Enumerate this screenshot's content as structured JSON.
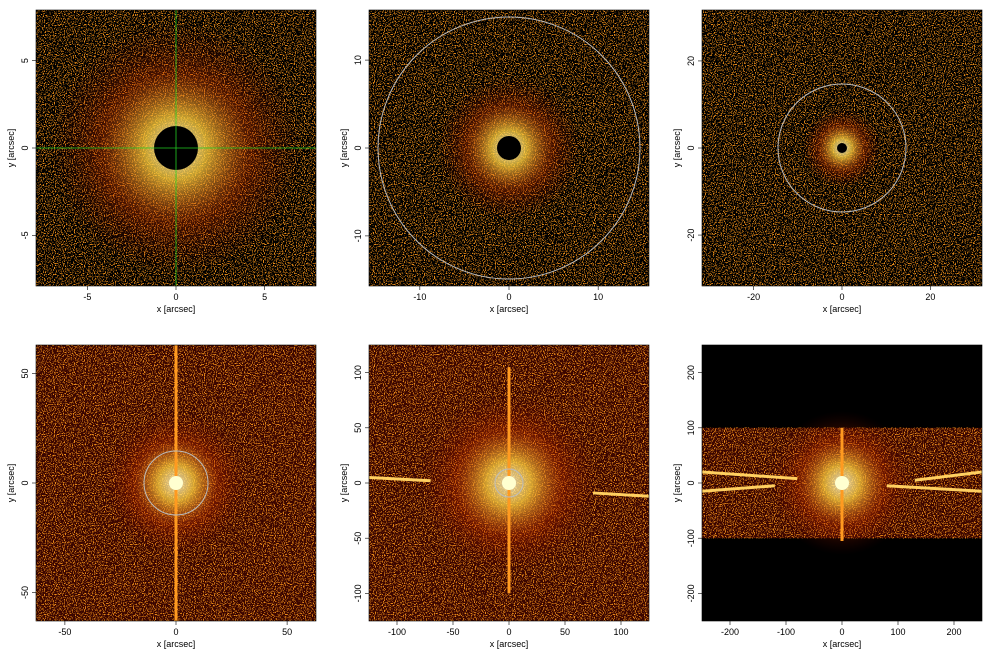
{
  "chart_data": [
    {
      "type": "image",
      "xlabel": "x [arcsec]",
      "ylabel": "y [arcsec]",
      "xlim": [
        -7.9,
        7.9
      ],
      "ylim": [
        -7.9,
        7.9
      ],
      "xticks": [
        -5,
        0,
        5
      ],
      "yticks": [
        -5,
        0,
        5
      ]
    },
    {
      "type": "image",
      "xlabel": "x [arcsec]",
      "ylabel": "y [arcsec]",
      "xlim": [
        -15.7,
        15.7
      ],
      "ylim": [
        -15.7,
        15.7
      ],
      "xticks": [
        -10,
        0,
        10
      ],
      "yticks": [
        -10,
        0,
        10
      ]
    },
    {
      "type": "image",
      "xlabel": "x [arcsec]",
      "ylabel": "y [arcsec]",
      "xlim": [
        -31.7,
        31.7
      ],
      "ylim": [
        -31.7,
        31.7
      ],
      "xticks": [
        -20,
        0,
        20
      ],
      "yticks": [
        -20,
        0,
        20
      ]
    },
    {
      "type": "image",
      "xlabel": "x [arcsec]",
      "ylabel": "y [arcsec]",
      "xlim": [
        -63,
        63
      ],
      "ylim": [
        -63,
        63
      ],
      "xticks": [
        -50,
        0,
        50
      ],
      "yticks": [
        -50,
        0,
        50
      ]
    },
    {
      "type": "image",
      "xlabel": "x [arcsec]",
      "ylabel": "y [arcsec]",
      "xlim": [
        -125,
        125
      ],
      "ylim": [
        -125,
        125
      ],
      "xticks": [
        -100,
        -50,
        0,
        50,
        100
      ],
      "yticks": [
        -100,
        -50,
        0,
        50,
        100
      ]
    },
    {
      "type": "image",
      "xlabel": "x [arcsec]",
      "ylabel": "y [arcsec]",
      "xlim": [
        -250,
        250
      ],
      "ylim": [
        -250,
        250
      ],
      "xticks": [
        -200,
        -100,
        0,
        100,
        200
      ],
      "yticks": [
        -200,
        -100,
        0,
        100,
        200
      ]
    }
  ]
}
